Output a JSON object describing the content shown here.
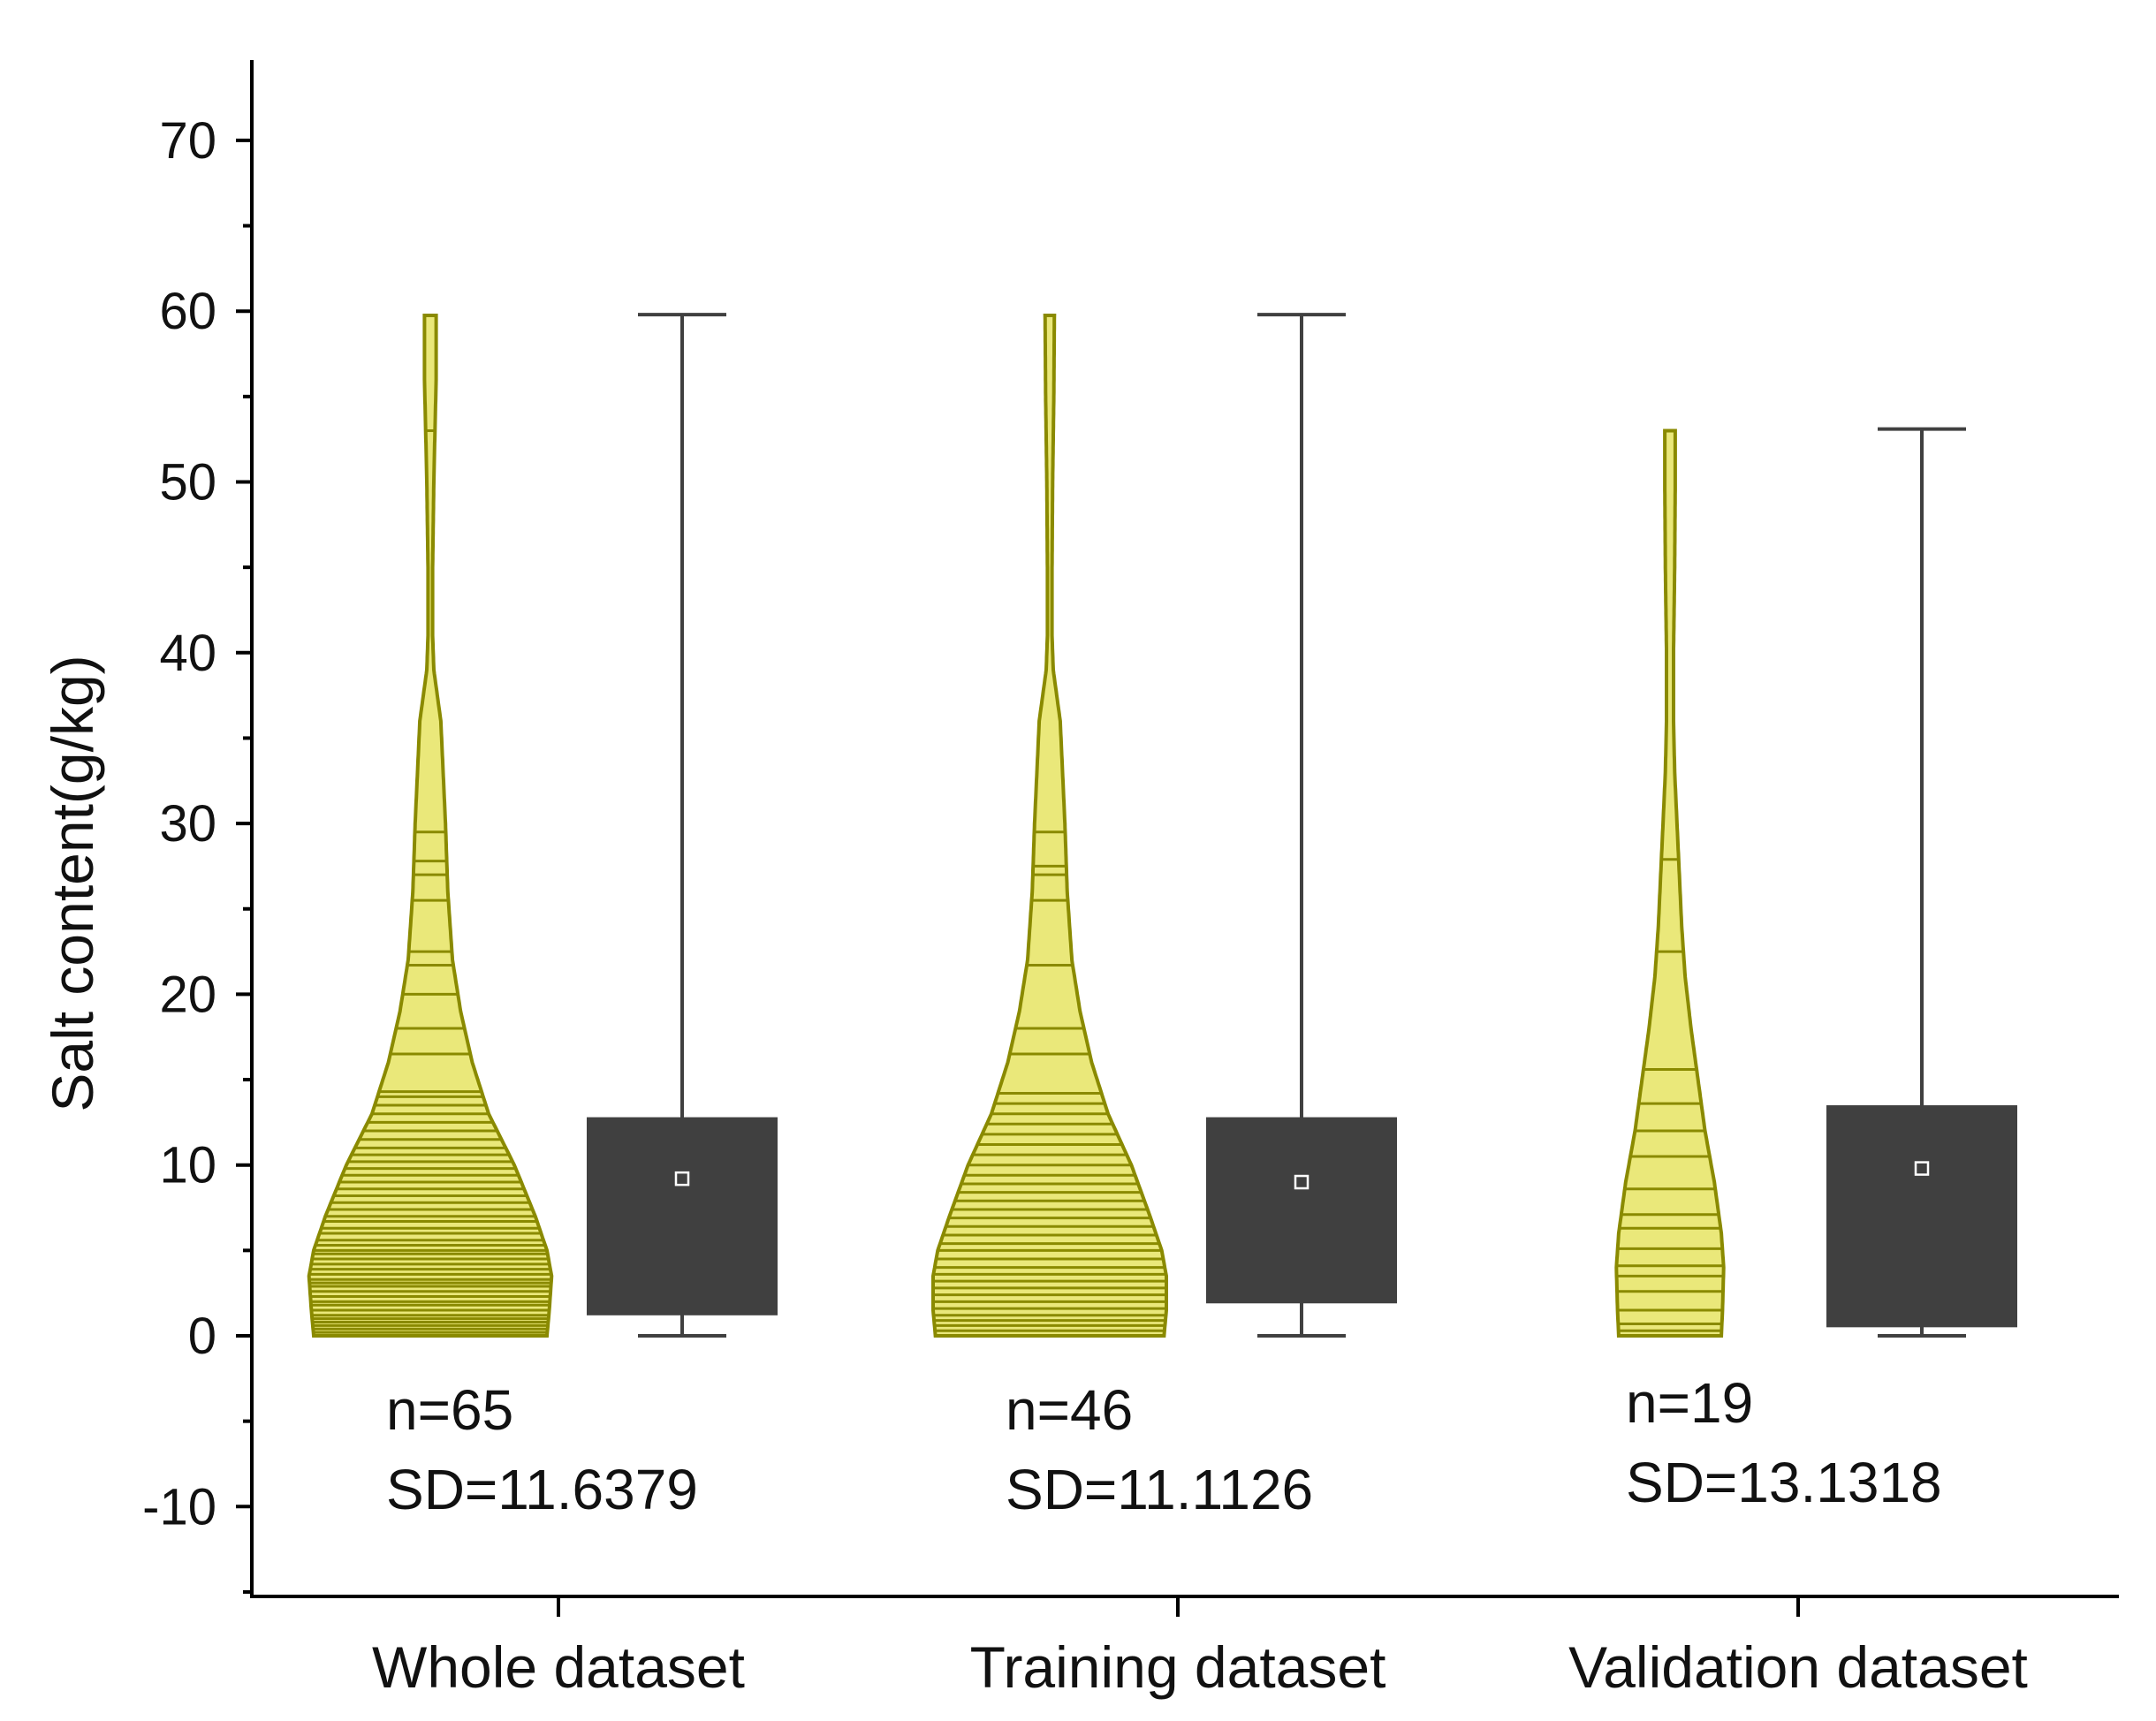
{
  "chart_data": {
    "type": "violin-box",
    "title": "",
    "xlabel": "",
    "ylabel": "Salt content(g/kg)",
    "ylim": [
      -15,
      75
    ],
    "yticks": [
      -10,
      0,
      10,
      20,
      30,
      40,
      50,
      60,
      70
    ],
    "categories": [
      "Whole dataset",
      "Training dataset",
      "Validation dataset"
    ],
    "colors": {
      "violin_fill": "#eae87a",
      "violin_edge": "#8a8a00",
      "box_fill": "#404040",
      "mean_marker": "#ffffff",
      "axis": "#000000"
    },
    "groups": [
      {
        "name": "Whole dataset",
        "n_label": "n=65",
        "sd_label": "SD=11.6379",
        "n": 65,
        "sd": 11.6379,
        "min": 0,
        "q1": 1.2,
        "mean": 9.2,
        "q3": 12.8,
        "max": 59.8,
        "density": [
          [
            0,
            1.0
          ],
          [
            1.5,
            1.02
          ],
          [
            3.5,
            1.04
          ],
          [
            5,
            1.0
          ],
          [
            7,
            0.9
          ],
          [
            10,
            0.72
          ],
          [
            13,
            0.5
          ],
          [
            16,
            0.36
          ],
          [
            19,
            0.26
          ],
          [
            22,
            0.19
          ],
          [
            26,
            0.15
          ],
          [
            30,
            0.13
          ],
          [
            33,
            0.11
          ],
          [
            36,
            0.09
          ],
          [
            39,
            0.03
          ],
          [
            41,
            0.02
          ],
          [
            45,
            0.02
          ],
          [
            50,
            0.03
          ],
          [
            53,
            0.04
          ],
          [
            56,
            0.05
          ],
          [
            59.8,
            0.05
          ]
        ],
        "points": [
          0.2,
          0.4,
          0.6,
          0.8,
          1.0,
          1.2,
          1.5,
          1.8,
          2.0,
          2.3,
          2.6,
          2.9,
          3.1,
          3.3,
          3.6,
          3.9,
          4.2,
          4.5,
          4.8,
          5.0,
          5.3,
          5.6,
          6.0,
          6.3,
          6.7,
          7.0,
          7.4,
          7.8,
          8.2,
          8.6,
          9.0,
          9.4,
          9.8,
          10.2,
          10.6,
          11.0,
          11.5,
          12.0,
          12.5,
          13.0,
          13.5,
          14.0,
          14.3,
          16.5,
          18.0,
          20.0,
          21.7,
          22.5,
          25.5,
          27.0,
          27.8,
          29.5,
          53.0
        ]
      },
      {
        "name": "Training dataset",
        "n_label": "n=46",
        "sd_label": "SD=11.1126",
        "n": 46,
        "sd": 11.1126,
        "min": 0,
        "q1": 1.9,
        "mean": 9.0,
        "q3": 12.8,
        "max": 59.8,
        "density": [
          [
            0,
            0.98
          ],
          [
            1.5,
            1.0
          ],
          [
            3.5,
            1.0
          ],
          [
            5,
            0.96
          ],
          [
            7,
            0.86
          ],
          [
            10,
            0.7
          ],
          [
            13,
            0.5
          ],
          [
            16,
            0.36
          ],
          [
            19,
            0.26
          ],
          [
            22,
            0.19
          ],
          [
            26,
            0.15
          ],
          [
            30,
            0.13
          ],
          [
            33,
            0.11
          ],
          [
            36,
            0.09
          ],
          [
            39,
            0.03
          ],
          [
            41,
            0.02
          ],
          [
            45,
            0.02
          ],
          [
            50,
            0.025
          ],
          [
            55,
            0.035
          ],
          [
            59.8,
            0.04
          ]
        ],
        "points": [
          0.3,
          0.6,
          0.9,
          1.2,
          1.6,
          2.0,
          2.4,
          2.8,
          3.2,
          3.6,
          4.0,
          4.5,
          5.0,
          5.4,
          5.9,
          6.4,
          6.9,
          7.4,
          7.9,
          8.4,
          8.9,
          9.4,
          10.0,
          10.6,
          11.2,
          11.8,
          12.4,
          13.0,
          13.6,
          14.2,
          16.5,
          18.0,
          21.7,
          25.5,
          27.0,
          27.5,
          29.5
        ]
      },
      {
        "name": "Validation dataset",
        "n_label": "n=19",
        "sd_label": "SD=13.1318",
        "n": 19,
        "sd": 13.1318,
        "min": 0,
        "q1": 0.5,
        "mean": 9.8,
        "q3": 13.5,
        "max": 53.1,
        "density": [
          [
            0,
            0.44
          ],
          [
            1.5,
            0.45
          ],
          [
            4,
            0.46
          ],
          [
            6,
            0.44
          ],
          [
            9,
            0.38
          ],
          [
            12,
            0.3
          ],
          [
            15,
            0.24
          ],
          [
            18,
            0.18
          ],
          [
            21,
            0.13
          ],
          [
            24,
            0.1
          ],
          [
            27,
            0.08
          ],
          [
            30,
            0.06
          ],
          [
            33,
            0.04
          ],
          [
            36,
            0.03
          ],
          [
            40,
            0.03
          ],
          [
            45,
            0.04
          ],
          [
            50,
            0.045
          ],
          [
            53.1,
            0.045
          ]
        ],
        "points": [
          0.3,
          0.7,
          1.5,
          2.6,
          3.5,
          4.1,
          5.1,
          6.3,
          7.1,
          8.6,
          10.5,
          12.0,
          13.6,
          15.6,
          22.5,
          27.9
        ]
      }
    ]
  }
}
